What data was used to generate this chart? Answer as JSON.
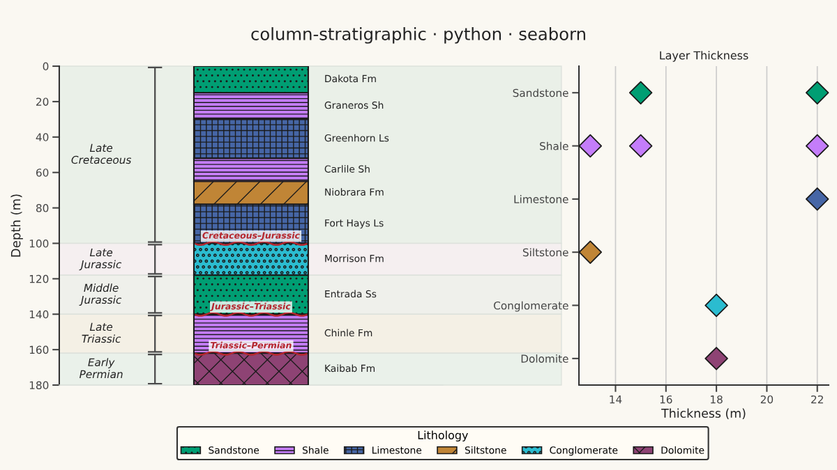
{
  "chart_data": [
    {
      "type": "bar",
      "title": "column-stratigraphic · python · seaborn",
      "ylabel": "Depth (m)",
      "categories": [
        null
      ],
      "stacked": true,
      "ylim": [
        180,
        0
      ],
      "yticks": [
        0,
        20,
        40,
        60,
        80,
        100,
        120,
        140,
        160,
        180
      ],
      "series": [
        {
          "name": "Dakota Fm",
          "color": "#009e73",
          "values": [
            15
          ]
        },
        {
          "name": "Graneros Sh",
          "color": "#c47dfa",
          "values": [
            15
          ]
        },
        {
          "name": "Greenhorn Ls",
          "color": "#4666a6",
          "values": [
            22
          ]
        },
        {
          "name": "Carlile Sh",
          "color": "#c47dfa",
          "values": [
            13
          ]
        },
        {
          "name": "Niobrara Fm",
          "color": "#c08536",
          "values": [
            13
          ]
        },
        {
          "name": "Fort Hays Ls",
          "color": "#4666a6",
          "values": [
            22
          ]
        },
        {
          "name": "Morrison Fm",
          "color": "#2bbcd0",
          "values": [
            18
          ]
        },
        {
          "name": "Entrada Ss",
          "color": "#009e73",
          "values": [
            22
          ]
        },
        {
          "name": "Chinle Fm",
          "color": "#c47dfa",
          "values": [
            22
          ]
        },
        {
          "name": "Kaibab Fm",
          "color": "#8e4374",
          "values": [
            18
          ]
        }
      ],
      "bands": [
        {
          "axis": "y",
          "from": 0,
          "to": 100,
          "label": "Late\nCretaceous",
          "color": "#eaf0e8"
        },
        {
          "axis": "y",
          "from": 100,
          "to": 118,
          "label": "Late\nJurassic",
          "color": "#f5eff0"
        },
        {
          "axis": "y",
          "from": 118,
          "to": 140,
          "label": "Middle\nJurassic",
          "color": "#eff0eb"
        },
        {
          "axis": "y",
          "from": 140,
          "to": 162,
          "label": "Late\nTriassic",
          "color": "#f4f0e5"
        },
        {
          "axis": "y",
          "from": 162,
          "to": 180,
          "label": "Early\nPermian",
          "color": "#eaf1ea"
        }
      ],
      "annotations": [
        {
          "text": "Cretaceous–Jurassic",
          "y": 100
        },
        {
          "text": "Jurassic–Triassic",
          "y": 140
        },
        {
          "text": "Triassic–Permian",
          "y": 162
        }
      ]
    },
    {
      "type": "scatter",
      "orientation": "horizontal",
      "title": "Layer Thickness",
      "xlabel": "Thickness (m)",
      "categories": [
        "Sandstone",
        "Shale",
        "Limestone",
        "Siltstone",
        "Conglomerate",
        "Dolomite"
      ],
      "xlim": [
        12.55,
        22.45
      ],
      "xticks": [
        14,
        16,
        18,
        20,
        22
      ],
      "grid": "x",
      "marker": "diamond",
      "legend": "bottom",
      "legend_title": "Lithology",
      "series": [
        {
          "name": "Sandstone",
          "color": "#009e73",
          "values": [
            15,
            null,
            null,
            null,
            null,
            null
          ]
        },
        {
          "name": "Shale",
          "color": "#c47dfa",
          "values": [
            null,
            15,
            null,
            null,
            null,
            null
          ]
        },
        {
          "name": "Limestone",
          "color": "#4666a6",
          "values": [
            null,
            null,
            22,
            null,
            null,
            null
          ]
        },
        {
          "color": "#c47dfa",
          "values": [
            null,
            13,
            null,
            null,
            null,
            null
          ]
        },
        {
          "name": "Siltstone",
          "color": "#c08536",
          "values": [
            null,
            null,
            null,
            13,
            null,
            null
          ]
        },
        {
          "name": "Conglomerate",
          "color": "#2bbcd0",
          "values": [
            null,
            null,
            null,
            null,
            18,
            null
          ]
        },
        {
          "color": "#009e73",
          "values": [
            22,
            null,
            null,
            null,
            null,
            null
          ]
        },
        {
          "color": "#c47dfa",
          "values": [
            null,
            22,
            null,
            null,
            null,
            null
          ]
        },
        {
          "name": "Dolomite",
          "color": "#8e4374",
          "values": [
            null,
            null,
            null,
            null,
            null,
            18
          ]
        }
      ]
    }
  ]
}
